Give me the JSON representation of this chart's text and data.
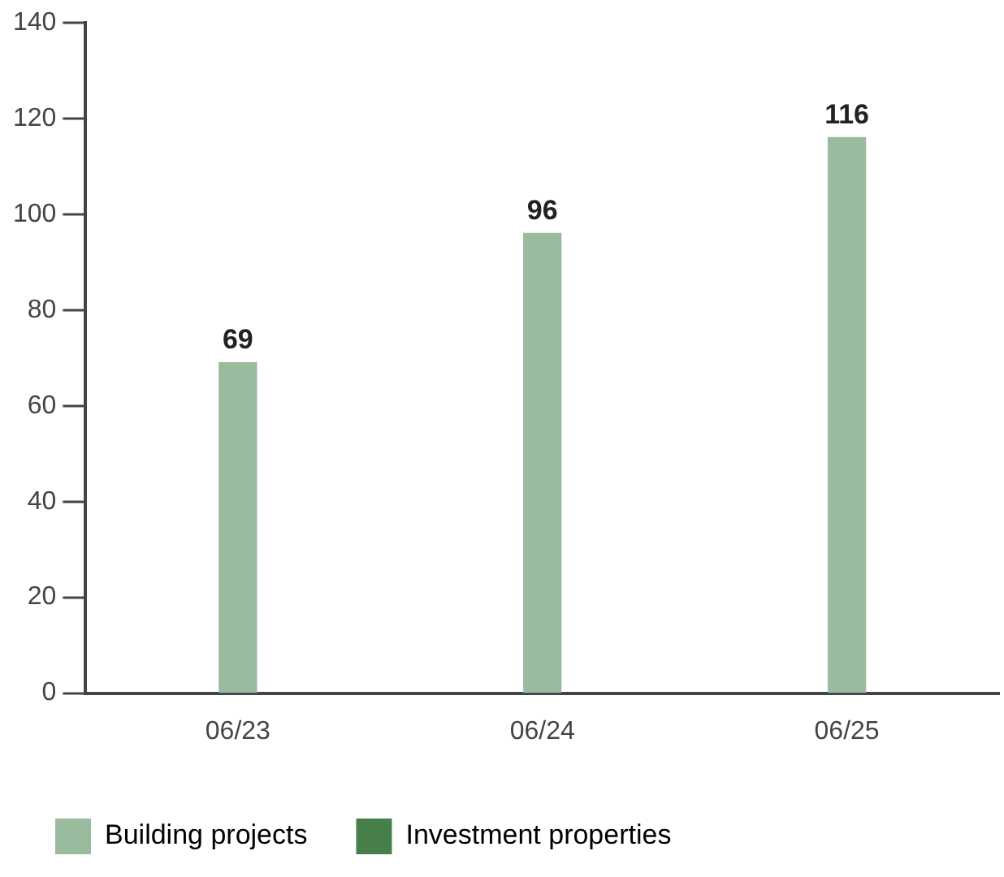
{
  "chart_data": {
    "type": "bar",
    "categories": [
      "06/23",
      "06/24",
      "06/25"
    ],
    "series": [
      {
        "name": "Building projects",
        "color": "#9bbb9e",
        "values": [
          69,
          96,
          116
        ]
      },
      {
        "name": "Investment properties",
        "color": "#477f4a",
        "values": [
          null,
          null,
          null
        ]
      }
    ],
    "ylim": [
      0,
      140
    ],
    "yticks": [
      0,
      20,
      40,
      60,
      80,
      100,
      120,
      140
    ],
    "grid": false,
    "legend": "bottom",
    "data_labels": true
  }
}
